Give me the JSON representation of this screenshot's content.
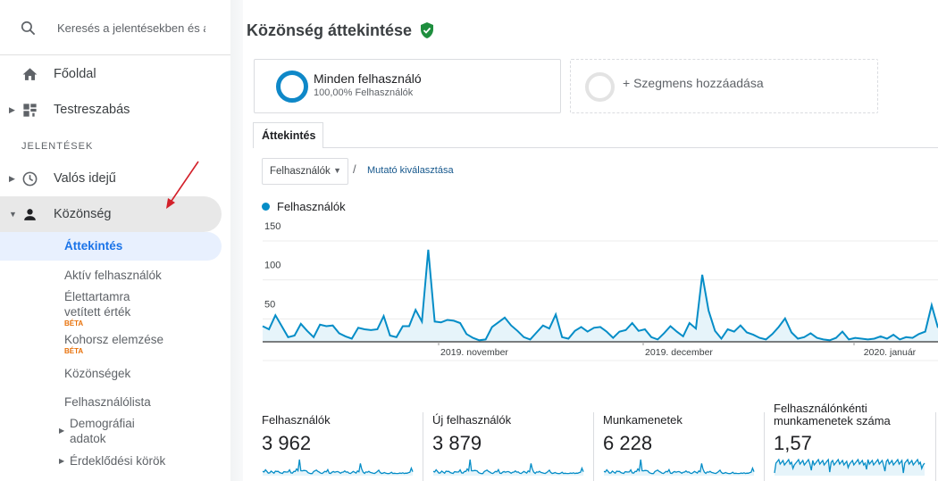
{
  "search": {
    "placeholder": "Keresés a jelentésekben és a súgóban"
  },
  "nav": {
    "home": "Főoldal",
    "customization": "Testreszabás",
    "section_reports": "JELENTÉSEK",
    "realtime": "Valós idejű",
    "audience": "Közönség"
  },
  "audience_sub": {
    "overview": "Áttekintés",
    "active_users": "Aktív felhasználók",
    "ltv_line1": "Élettartamra",
    "ltv_line2": "vetített érték",
    "ltv_badge": "BÉTA",
    "cohort": "Kohorsz elemzése",
    "cohort_badge": "BÉTA",
    "audiences": "Közönségek",
    "user_explorer": "Felhasználólista",
    "demographics_line1": "Demográfiai",
    "demographics_line2": "adatok",
    "interests": "Érdeklődési körök"
  },
  "page": {
    "title": "Közönség áttekintése"
  },
  "segments": {
    "all_users": "Minden felhasználó",
    "all_users_pct": "100,00% Felhasználók",
    "add_segment": "+ Szegmens hozzáadása"
  },
  "tabs": {
    "overview": "Áttekintés"
  },
  "controls": {
    "metric_select": "Felhasználók",
    "slash": "/",
    "choose_metric": "Mutató kiválasztása"
  },
  "chart_data": {
    "type": "area",
    "series_name": "Felhasználók",
    "color": "#058dc7",
    "y_ticks": [
      "150",
      "100",
      "50"
    ],
    "ylim": [
      0,
      150
    ],
    "x_labels": [
      "2019. november",
      "2019. december",
      "2020. január"
    ],
    "values": [
      20,
      16,
      34,
      20,
      6,
      8,
      23,
      14,
      6,
      22,
      20,
      21,
      11,
      7,
      4,
      18,
      16,
      15,
      16,
      33,
      8,
      6,
      20,
      20,
      41,
      26,
      118,
      26,
      25,
      28,
      27,
      24,
      10,
      5,
      2,
      3,
      19,
      25,
      31,
      21,
      14,
      6,
      3,
      12,
      21,
      17,
      35,
      6,
      4,
      14,
      19,
      13,
      18,
      19,
      13,
      5,
      13,
      15,
      24,
      14,
      16,
      6,
      3,
      11,
      20,
      13,
      7,
      24,
      17,
      86,
      40,
      14,
      4,
      16,
      13,
      21,
      12,
      9,
      5,
      3,
      10,
      19,
      30,
      12,
      4,
      6,
      11,
      5,
      3,
      2,
      5,
      13,
      3,
      5,
      4,
      3,
      4,
      7,
      4,
      9,
      3,
      6,
      5,
      10,
      13,
      47,
      18
    ]
  },
  "tiles": [
    {
      "label": "Felhasználók",
      "value": "3 962"
    },
    {
      "label": "Új felhasználók",
      "value": "3 879"
    },
    {
      "label": "Munkamenetek",
      "value": "6 228"
    },
    {
      "label_line1": "Felhasználónkénti",
      "label_line2": "munkamenetek száma",
      "value": "1,57"
    }
  ]
}
